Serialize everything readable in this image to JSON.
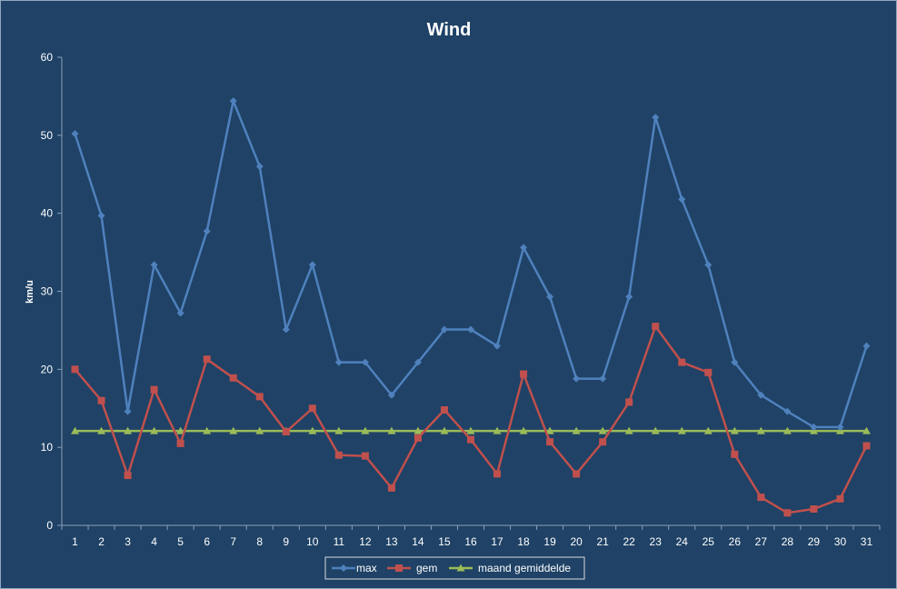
{
  "chart_data": {
    "type": "line",
    "title": "Wind",
    "xlabel": "",
    "ylabel": "km/u",
    "ylim": [
      0,
      60
    ],
    "yticks": [
      0,
      10,
      20,
      30,
      40,
      50,
      60
    ],
    "grid": false,
    "legend": "bottom",
    "categories": [
      "1",
      "2",
      "3",
      "4",
      "5",
      "6",
      "7",
      "8",
      "9",
      "10",
      "11",
      "12",
      "13",
      "14",
      "15",
      "16",
      "17",
      "18",
      "19",
      "20",
      "21",
      "22",
      "23",
      "24",
      "25",
      "26",
      "27",
      "28",
      "29",
      "30",
      "31"
    ],
    "series": [
      {
        "name": "max",
        "color": "#4f81bd",
        "marker": "diamond",
        "values": [
          50.2,
          39.7,
          14.6,
          33.4,
          27.2,
          37.7,
          54.4,
          46.0,
          25.1,
          33.4,
          20.9,
          20.9,
          16.7,
          20.9,
          25.1,
          25.1,
          23.0,
          35.6,
          29.3,
          18.8,
          18.8,
          29.3,
          52.3,
          41.8,
          33.4,
          20.9,
          16.7,
          14.6,
          12.6,
          12.6,
          23.0
        ]
      },
      {
        "name": "gem",
        "color": "#c0504d",
        "marker": "square",
        "values": [
          20.0,
          16.0,
          6.4,
          17.4,
          10.5,
          21.3,
          18.9,
          16.5,
          12.0,
          15.0,
          9.0,
          8.9,
          4.8,
          11.2,
          14.8,
          11.0,
          6.6,
          19.4,
          10.7,
          6.6,
          10.7,
          15.8,
          25.5,
          20.9,
          19.6,
          9.1,
          3.6,
          1.6,
          2.1,
          3.4,
          10.2
        ]
      },
      {
        "name": "maand gemiddelde",
        "color": "#9bbb59",
        "marker": "triangle",
        "values": [
          12.1,
          12.1,
          12.1,
          12.1,
          12.1,
          12.1,
          12.1,
          12.1,
          12.1,
          12.1,
          12.1,
          12.1,
          12.1,
          12.1,
          12.1,
          12.1,
          12.1,
          12.1,
          12.1,
          12.1,
          12.1,
          12.1,
          12.1,
          12.1,
          12.1,
          12.1,
          12.1,
          12.1,
          12.1,
          12.1,
          12.1
        ]
      }
    ]
  }
}
